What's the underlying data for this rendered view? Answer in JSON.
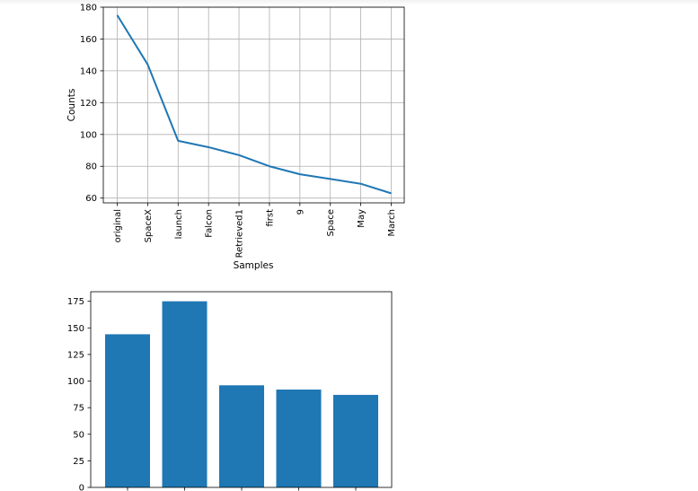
{
  "chart_data": [
    {
      "type": "line",
      "xlabel": "Samples",
      "ylabel": "Counts",
      "categories": [
        "original",
        "SpaceX",
        "launch",
        "Falcon",
        "Retrieved1",
        "first",
        "9",
        "Space",
        "May",
        "March"
      ],
      "series": [
        {
          "values": [
            175,
            144,
            96,
            92,
            87,
            80,
            75,
            72,
            69,
            63
          ]
        }
      ],
      "ylim": [
        57,
        180
      ],
      "yticks": [
        60,
        80,
        100,
        120,
        140,
        160,
        180
      ],
      "grid": true,
      "color": "#1f77b4"
    },
    {
      "type": "bar",
      "categories": [
        "",
        "",
        "",
        "",
        ""
      ],
      "values": [
        144,
        175,
        96,
        92,
        87
      ],
      "ylim": [
        0,
        184
      ],
      "yticks": [
        0,
        25,
        50,
        75,
        100,
        125,
        150,
        175
      ],
      "grid": false,
      "color": "#1f77b4"
    }
  ]
}
